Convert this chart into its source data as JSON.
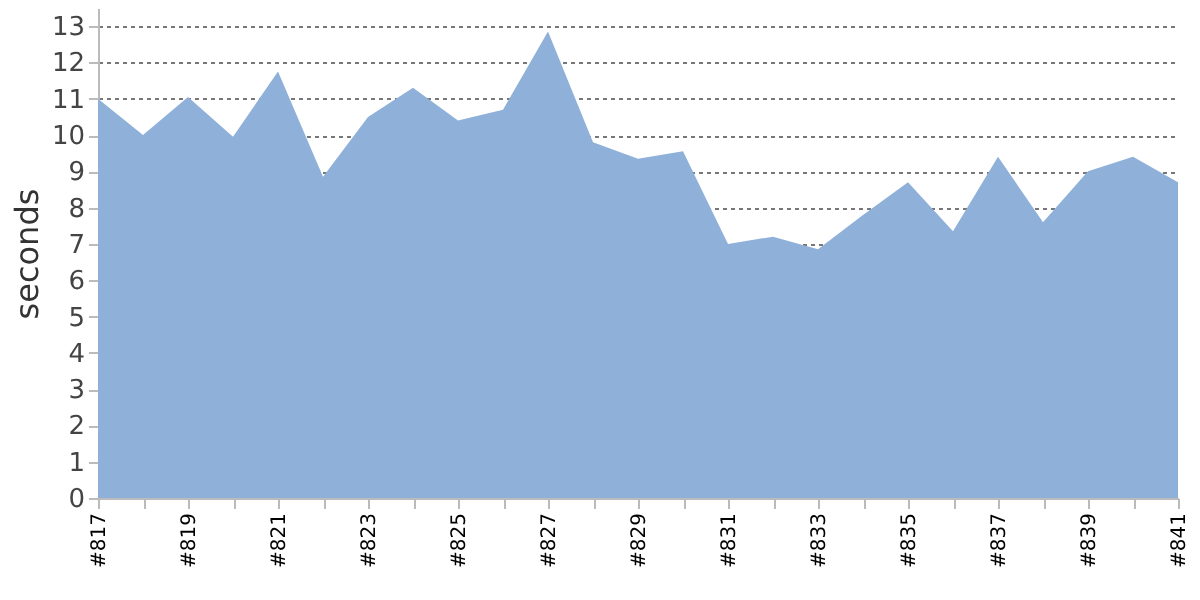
{
  "chart_data": {
    "type": "area",
    "ylabel": "seconds",
    "categories": [
      "#817",
      null,
      "#819",
      null,
      "#821",
      null,
      "#823",
      null,
      "#825",
      null,
      "#827",
      null,
      "#829",
      null,
      "#831",
      null,
      "#833",
      null,
      "#835",
      null,
      "#837",
      null,
      "#839",
      null,
      "#841"
    ],
    "series": [
      {
        "color": "#8eb0d9",
        "values": [
          11.0,
          10.0,
          11.05,
          9.95,
          11.75,
          8.85,
          10.5,
          11.3,
          10.4,
          10.7,
          12.85,
          9.8,
          9.35,
          9.55,
          7.0,
          7.2,
          6.85,
          7.8,
          8.7,
          7.35,
          9.4,
          7.6,
          9.0,
          9.4,
          8.7
        ]
      }
    ],
    "ylim": [
      0,
      13.5
    ],
    "yticks": [
      0,
      1,
      2,
      3,
      4,
      5,
      6,
      7,
      8,
      9,
      10,
      11,
      12,
      13
    ],
    "grid": "y"
  }
}
